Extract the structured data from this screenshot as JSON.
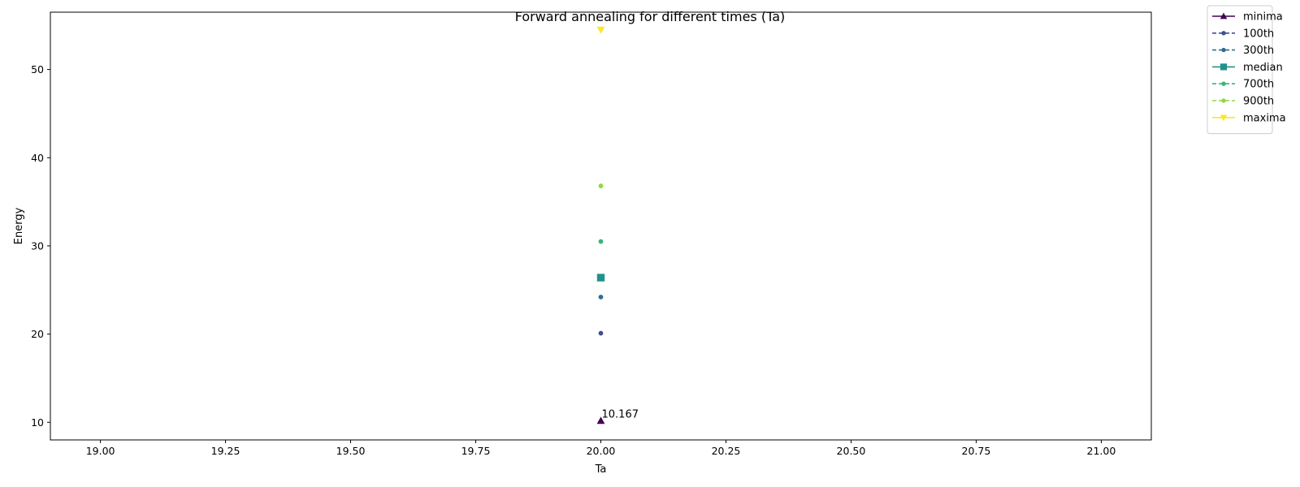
{
  "chart_data": {
    "type": "line",
    "title": "Forward annealing for different times (Ta)",
    "xlabel": "Ta",
    "ylabel": "Energy",
    "xlim": [
      18.9,
      21.1
    ],
    "ylim": [
      8.0,
      56.5
    ],
    "xticks": [
      19.0,
      19.25,
      19.5,
      19.75,
      20.0,
      20.25,
      20.5,
      20.75,
      21.0
    ],
    "xtick_labels": [
      "19.00",
      "19.25",
      "19.50",
      "19.75",
      "20.00",
      "20.25",
      "20.50",
      "20.75",
      "21.00"
    ],
    "yticks": [
      10,
      20,
      30,
      40,
      50
    ],
    "ytick_labels": [
      "10",
      "20",
      "30",
      "40",
      "50"
    ],
    "grid": false,
    "legend_position": "outside-top-right",
    "series": [
      {
        "name": "minima",
        "x": [
          20.0
        ],
        "y": [
          10.167
        ],
        "color": "#440154",
        "marker": "triangle-up",
        "linestyle": "solid"
      },
      {
        "name": "100th",
        "x": [
          20.0
        ],
        "y": [
          20.1
        ],
        "color": "#3b528b",
        "marker": "circle",
        "linestyle": "dashed"
      },
      {
        "name": "300th",
        "x": [
          20.0
        ],
        "y": [
          24.2
        ],
        "color": "#2c6e8e",
        "marker": "circle",
        "linestyle": "dashed"
      },
      {
        "name": "median",
        "x": [
          20.0
        ],
        "y": [
          26.4
        ],
        "color": "#21918c",
        "marker": "square",
        "linestyle": "solid"
      },
      {
        "name": "700th",
        "x": [
          20.0
        ],
        "y": [
          30.5
        ],
        "color": "#35b779",
        "marker": "circle",
        "linestyle": "dashed"
      },
      {
        "name": "900th",
        "x": [
          20.0
        ],
        "y": [
          36.8
        ],
        "color": "#8fd744",
        "marker": "circle",
        "linestyle": "dashed"
      },
      {
        "name": "maxima",
        "x": [
          20.0
        ],
        "y": [
          54.5
        ],
        "color": "#fde725",
        "marker": "triangle-down",
        "linestyle": "solid"
      }
    ],
    "annotations": [
      {
        "text": "10.167",
        "x": 20.0,
        "y": 10.167
      }
    ]
  }
}
